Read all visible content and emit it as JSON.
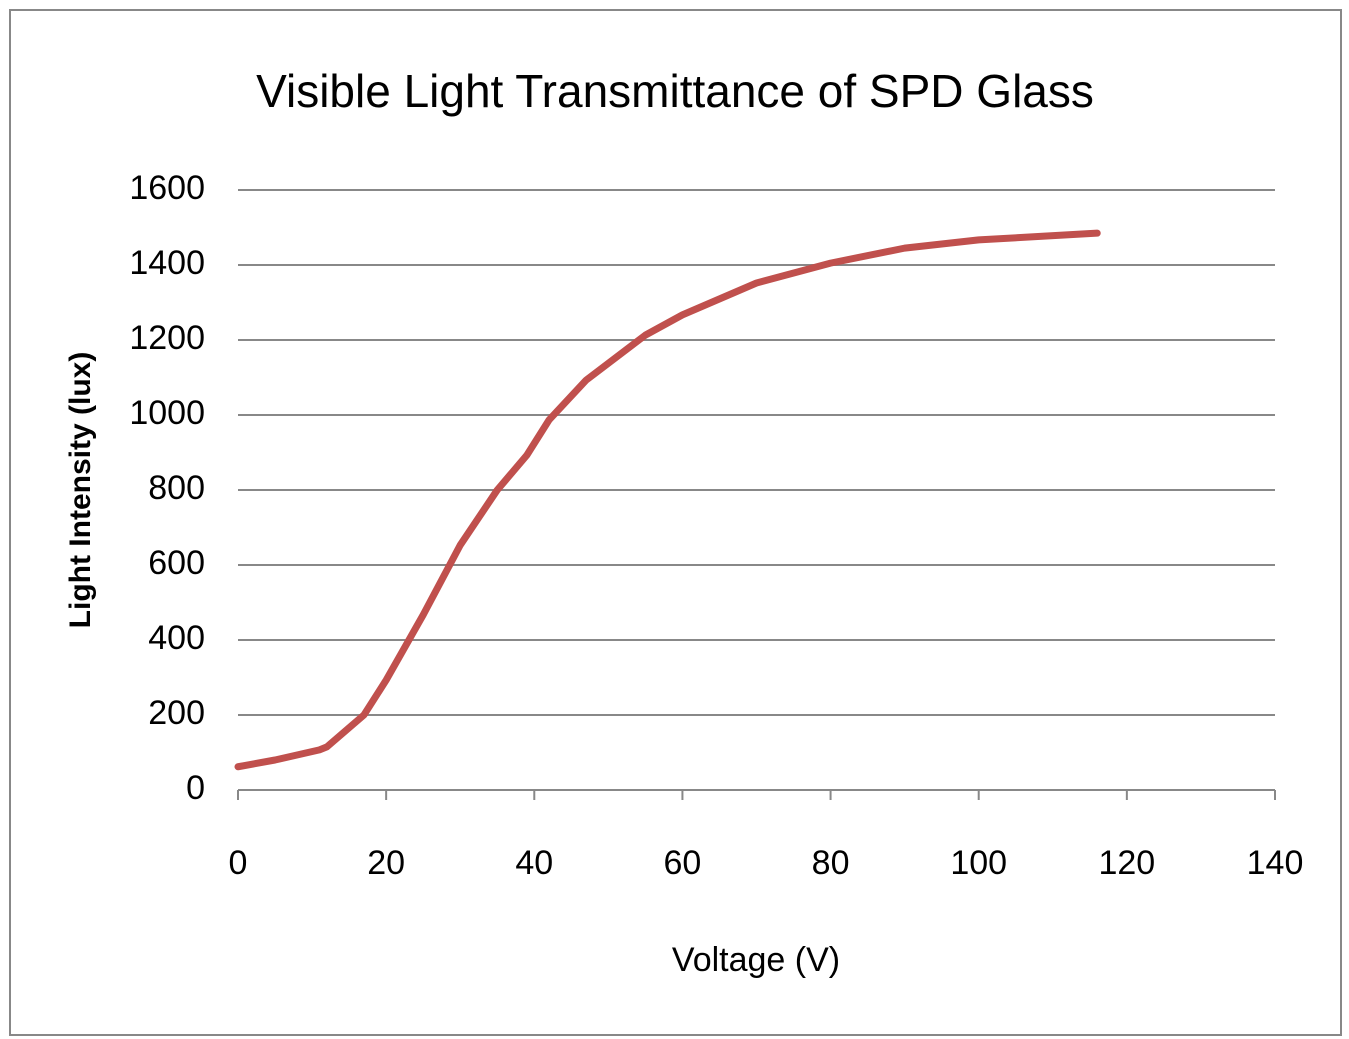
{
  "chart_data": {
    "type": "line",
    "title": "Visible Light Transmittance of SPD Glass",
    "x_label": "Voltage (V)",
    "y_label": "Light Intensity (lux)",
    "x": [
      0,
      5,
      11,
      12,
      17,
      20,
      25,
      30,
      35,
      39,
      42,
      47,
      55,
      60,
      70,
      80,
      90,
      100,
      116
    ],
    "values": [
      62,
      80,
      107,
      115,
      200,
      293,
      467,
      653,
      800,
      893,
      987,
      1093,
      1213,
      1267,
      1352,
      1405,
      1445,
      1467,
      1485
    ],
    "color": "#c0504d",
    "xlim": [
      0,
      140
    ],
    "xticks": [
      0,
      20,
      40,
      60,
      80,
      100,
      120,
      140
    ],
    "ylim": [
      0,
      1600
    ],
    "yticks": [
      0,
      200,
      400,
      600,
      800,
      1000,
      1200,
      1400,
      1600
    ],
    "grid": true
  }
}
